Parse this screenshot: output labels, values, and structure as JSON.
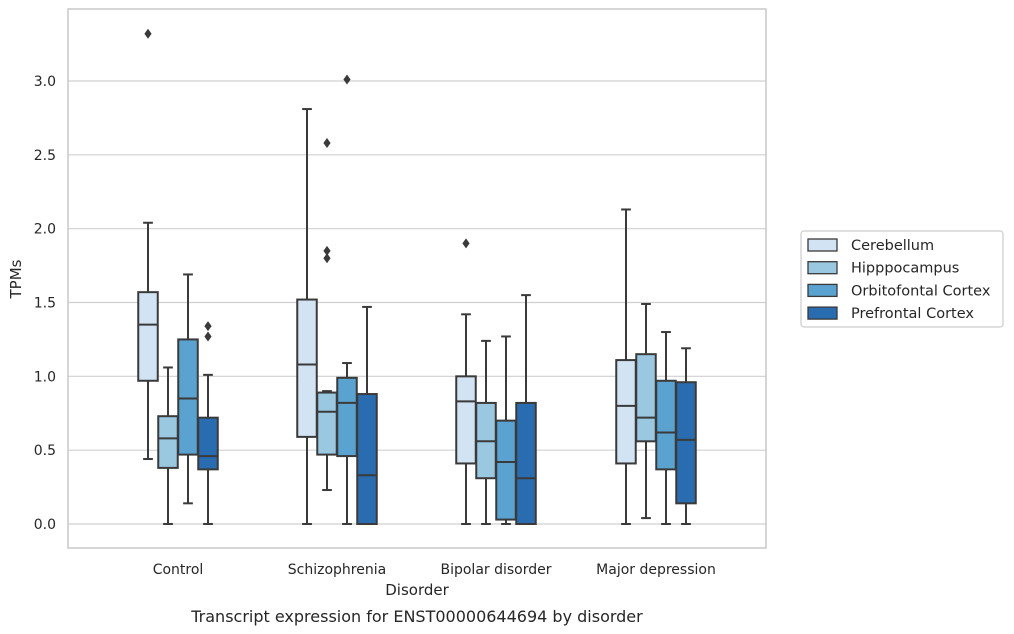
{
  "chart_data": {
    "type": "box",
    "caption": "Transcript expression for ENST00000644694 by disorder",
    "xlabel": "Disorder",
    "ylabel": "TPMs",
    "ylim": [
      -0.16,
      3.5
    ],
    "yticks": [
      0.0,
      0.5,
      1.0,
      1.5,
      2.0,
      2.5,
      3.0
    ],
    "ytick_labels": [
      "0.0",
      "0.5",
      "1.0",
      "1.5",
      "2.0",
      "2.5",
      "3.0"
    ],
    "grid": "horizontal",
    "legend_position": "right",
    "categories": [
      "Control",
      "Schizophrenia",
      "Bipolar disorder",
      "Major depression"
    ],
    "series": [
      {
        "name": "Cerebellum",
        "color": "#d2e3f3",
        "boxes": [
          {
            "whislo": 0.44,
            "q1": 0.97,
            "med": 1.35,
            "q3": 1.57,
            "whishi": 2.04,
            "fliers": [
              3.32
            ]
          },
          {
            "whislo": 0.0,
            "q1": 0.59,
            "med": 1.08,
            "q3": 1.52,
            "whishi": 2.81,
            "fliers": []
          },
          {
            "whislo": 0.0,
            "q1": 0.41,
            "med": 0.83,
            "q3": 1.0,
            "whishi": 1.42,
            "fliers": [
              1.9
            ]
          },
          {
            "whislo": 0.0,
            "q1": 0.41,
            "med": 0.8,
            "q3": 1.11,
            "whishi": 2.13,
            "fliers": []
          }
        ]
      },
      {
        "name": "Hipppocampus",
        "color": "#9ac8e0",
        "boxes": [
          {
            "whislo": 0.0,
            "q1": 0.38,
            "med": 0.58,
            "q3": 0.73,
            "whishi": 1.06,
            "fliers": []
          },
          {
            "whislo": 0.23,
            "q1": 0.47,
            "med": 0.76,
            "q3": 0.89,
            "whishi": 0.9,
            "fliers": [
              2.58,
              1.85,
              1.8
            ]
          },
          {
            "whislo": 0.0,
            "q1": 0.31,
            "med": 0.56,
            "q3": 0.82,
            "whishi": 1.24,
            "fliers": []
          },
          {
            "whislo": 0.04,
            "q1": 0.56,
            "med": 0.72,
            "q3": 1.15,
            "whishi": 1.49,
            "fliers": []
          }
        ]
      },
      {
        "name": "Orbitofontal Cortex",
        "color": "#5aa2cf",
        "boxes": [
          {
            "whislo": 0.14,
            "q1": 0.47,
            "med": 0.85,
            "q3": 1.25,
            "whishi": 1.69,
            "fliers": []
          },
          {
            "whislo": 0.0,
            "q1": 0.46,
            "med": 0.82,
            "q3": 0.99,
            "whishi": 1.09,
            "fliers": [
              3.01
            ]
          },
          {
            "whislo": 0.0,
            "q1": 0.03,
            "med": 0.42,
            "q3": 0.7,
            "whishi": 1.27,
            "fliers": []
          },
          {
            "whislo": 0.0,
            "q1": 0.37,
            "med": 0.62,
            "q3": 0.97,
            "whishi": 1.3,
            "fliers": []
          }
        ]
      },
      {
        "name": "Prefrontal Cortex",
        "color": "#2a6cb0",
        "boxes": [
          {
            "whislo": 0.0,
            "q1": 0.37,
            "med": 0.46,
            "q3": 0.72,
            "whishi": 1.01,
            "fliers": [
              1.34,
              1.27
            ]
          },
          {
            "whislo": 0.0,
            "q1": 0.0,
            "med": 0.33,
            "q3": 0.88,
            "whishi": 1.47,
            "fliers": []
          },
          {
            "whislo": 0.0,
            "q1": 0.0,
            "med": 0.31,
            "q3": 0.82,
            "whishi": 1.55,
            "fliers": []
          },
          {
            "whislo": 0.0,
            "q1": 0.14,
            "med": 0.57,
            "q3": 0.96,
            "whishi": 1.19,
            "fliers": []
          }
        ]
      }
    ],
    "colors": {
      "edge": "#3a3a3a",
      "grid": "#d0d0d0",
      "frame": "#c8c8c8"
    }
  }
}
